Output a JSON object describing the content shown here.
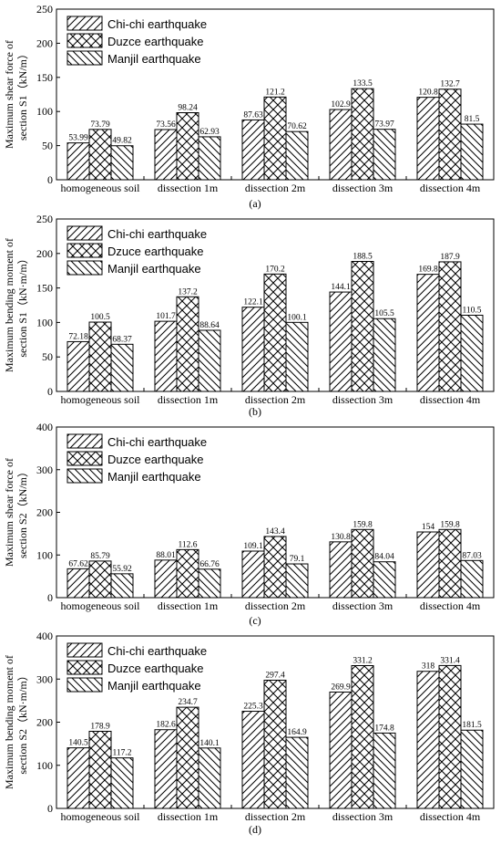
{
  "chart_data": [
    {
      "type": "bar",
      "categories": [
        "homogeneous soil",
        "dissection 1m",
        "dissection 2m",
        "dissection 3m",
        "dissection 4m"
      ],
      "series": [
        {
          "name": "Chi-chi earthquake",
          "pattern": "diag-forward",
          "values": [
            53.99,
            73.56,
            87.63,
            102.9,
            120.8
          ],
          "labels": [
            "53.99",
            "73.56",
            "87.63",
            "102.9",
            "120.8"
          ]
        },
        {
          "name": "Duzce earthquake",
          "pattern": "cross",
          "values": [
            73.79,
            98.24,
            121.2,
            133.5,
            132.7
          ],
          "labels": [
            "73.79",
            "98.24",
            "121.2",
            "133.5",
            "132.7"
          ]
        },
        {
          "name": "Manjil earthquake",
          "pattern": "diag-back",
          "values": [
            49.82,
            62.93,
            70.62,
            73.97,
            81.5
          ],
          "labels": [
            "49.82",
            "62.93",
            "70.62",
            "73.97",
            "81.5"
          ]
        }
      ],
      "ylabel_lines": [
        "Maximum shear force of",
        "section S1（kN/m）"
      ],
      "ylim": [
        0,
        250
      ],
      "yticks": [
        0,
        50,
        100,
        150,
        200,
        250
      ],
      "panel_label": "(a)",
      "grid": false,
      "legend_position": "top-left"
    },
    {
      "type": "bar",
      "categories": [
        "homogeneous soil",
        "dissection 1m",
        "dissection 2m",
        "dissection 3m",
        "dissection 4m"
      ],
      "series": [
        {
          "name": "Chi-chi earthquake",
          "pattern": "diag-forward",
          "values": [
            72.18,
            101.7,
            122.1,
            144.1,
            169.8
          ],
          "labels": [
            "72.18",
            "101.7",
            "122.1",
            "144.1",
            "169.8"
          ]
        },
        {
          "name": "Dzuce earthquake",
          "pattern": "cross",
          "values": [
            100.5,
            137.2,
            170.2,
            188.5,
            187.9
          ],
          "labels": [
            "100.5",
            "137.2",
            "170.2",
            "188.5",
            "187.9"
          ]
        },
        {
          "name": "Manjil earthquake",
          "pattern": "diag-back",
          "values": [
            68.37,
            88.64,
            100.1,
            105.5,
            110.5
          ],
          "labels": [
            "68.37",
            "88.64",
            "100.1",
            "105.5",
            "110.5"
          ]
        }
      ],
      "ylabel_lines": [
        "Maximum bending moment of",
        "section S1（kN·m/m）"
      ],
      "ylim": [
        0,
        250
      ],
      "yticks": [
        0,
        50,
        100,
        150,
        200,
        250
      ],
      "panel_label": "(b)",
      "grid": false,
      "legend_position": "top-left"
    },
    {
      "type": "bar",
      "categories": [
        "homogeneous soil",
        "dissection 1m",
        "dissection 2m",
        "dissection 3m",
        "dissection 4m"
      ],
      "series": [
        {
          "name": "Chi-chi earthquake",
          "pattern": "diag-forward",
          "values": [
            67.62,
            88.01,
            109.1,
            130.8,
            154
          ],
          "labels": [
            "67.62",
            "88.01",
            "109.1",
            "130.8",
            "154"
          ]
        },
        {
          "name": "Duzce earthquake",
          "pattern": "cross",
          "values": [
            85.79,
            112.6,
            143.4,
            159.8,
            159.8
          ],
          "labels": [
            "85.79",
            "112.6",
            "143.4",
            "159.8",
            "159.8"
          ]
        },
        {
          "name": "Manjil earthquake",
          "pattern": "diag-back",
          "values": [
            55.92,
            66.76,
            79.1,
            84.04,
            87.03
          ],
          "labels": [
            "55.92",
            "66.76",
            "79.1",
            "84.04",
            "87.03"
          ]
        }
      ],
      "ylabel_lines": [
        "Maximum shear force of",
        "section S2（kN/m）"
      ],
      "ylim": [
        0,
        400
      ],
      "yticks": [
        0,
        100,
        200,
        300,
        400
      ],
      "panel_label": "(c)",
      "grid": false,
      "legend_position": "top-left"
    },
    {
      "type": "bar",
      "categories": [
        "homogeneous soil",
        "dissection 1m",
        "dissection 2m",
        "dissection 3m",
        "dissection 4m"
      ],
      "series": [
        {
          "name": "Chi-chi earthquake",
          "pattern": "diag-forward",
          "values": [
            140.5,
            182.6,
            225.3,
            269.9,
            318
          ],
          "labels": [
            "140.5",
            "182.6",
            "225.3",
            "269.9",
            "318"
          ]
        },
        {
          "name": "Duzce earthquake",
          "pattern": "cross",
          "values": [
            178.9,
            234.7,
            297.4,
            331.2,
            331.4
          ],
          "labels": [
            "178.9",
            "234.7",
            "297.4",
            "331.2",
            "331.4"
          ]
        },
        {
          "name": "Manjil earthquake",
          "pattern": "diag-back",
          "values": [
            117.2,
            140.1,
            164.9,
            174.8,
            181.5
          ],
          "labels": [
            "117.2",
            "140.1",
            "164.9",
            "174.8",
            "181.5"
          ]
        }
      ],
      "ylabel_lines": [
        "Maximum bending moment of",
        "section S2（kN·m/m）"
      ],
      "ylim": [
        0,
        400
      ],
      "yticks": [
        0,
        100,
        200,
        300,
        400
      ],
      "panel_label": "(d)",
      "grid": false,
      "legend_position": "top-left"
    }
  ]
}
